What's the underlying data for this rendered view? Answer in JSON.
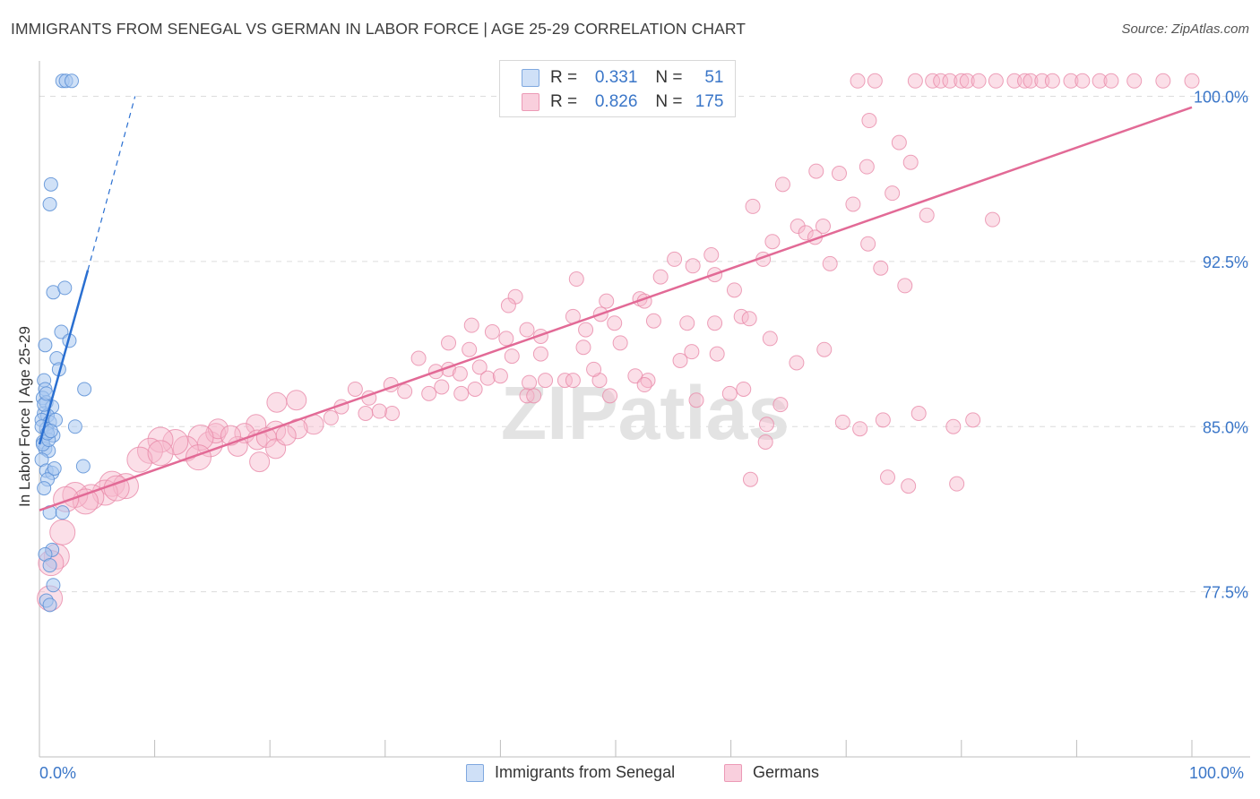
{
  "title": "IMMIGRANTS FROM SENEGAL VS GERMAN IN LABOR FORCE | AGE 25-29 CORRELATION CHART",
  "source": "Source: ZipAtlas.com",
  "watermark": "ZIPatlas",
  "legend_top": {
    "rows": [
      {
        "r_label": "R =",
        "r_value": "0.331",
        "n_label": "N =",
        "n_value": "51",
        "color": "#a9c9f0"
      },
      {
        "r_label": "R =",
        "r_value": "0.826",
        "n_label": "N =",
        "n_value": "175",
        "color": "#f6b8cc"
      }
    ]
  },
  "colors": {
    "senegal_fill": "#a9c9f0",
    "senegal_stroke": "#5a8fd6",
    "senegal_line": "#2a6fd1",
    "german_fill": "#f6b8cc",
    "german_stroke": "#e98aa9",
    "german_line": "#e26a96",
    "grid": "#dcdcdc",
    "tick_label": "#3a76c8"
  },
  "chart_data": {
    "type": "scatter",
    "title": "IMMIGRANTS FROM SENEGAL VS GERMAN IN LABOR FORCE | AGE 25-29 CORRELATION CHART",
    "xlabel": "",
    "ylabel": "In Labor Force | Age 25-29",
    "xlim": [
      0,
      100
    ],
    "ylim": [
      70.0,
      101.2
    ],
    "x_tick_labels": [
      "0.0%",
      "100.0%"
    ],
    "y_ticks": [
      77.5,
      85.0,
      92.5,
      100.0
    ],
    "y_tick_labels": [
      "77.5%",
      "85.0%",
      "92.5%",
      "100.0%"
    ],
    "grid": "horizontal dashed",
    "legend_position": "bottom-center",
    "series": [
      {
        "name": "Immigrants from Senegal",
        "R": 0.331,
        "N": 51,
        "trend": {
          "x": [
            0.0,
            4.2
          ],
          "y": [
            84.2,
            92.1
          ],
          "dashed_extension_to": [
            8.3,
            100.0
          ]
        },
        "points": [
          [
            2.0,
            100.7,
            1
          ],
          [
            2.3,
            100.7,
            1
          ],
          [
            2.8,
            100.7,
            1
          ],
          [
            1.0,
            96.0,
            1
          ],
          [
            0.9,
            95.1,
            1
          ],
          [
            1.2,
            91.1,
            1
          ],
          [
            2.2,
            91.3,
            1
          ],
          [
            1.9,
            89.3,
            1
          ],
          [
            2.6,
            88.9,
            1
          ],
          [
            0.5,
            88.7,
            1
          ],
          [
            1.5,
            88.1,
            1
          ],
          [
            1.7,
            87.6,
            1
          ],
          [
            0.4,
            87.1,
            1
          ],
          [
            0.5,
            86.7,
            1
          ],
          [
            3.9,
            86.7,
            1
          ],
          [
            0.3,
            86.3,
            1
          ],
          [
            0.6,
            86.1,
            1
          ],
          [
            1.1,
            85.9,
            1
          ],
          [
            0.4,
            85.6,
            1
          ],
          [
            0.7,
            85.5,
            1
          ],
          [
            0.2,
            85.3,
            1
          ],
          [
            0.9,
            85.2,
            1
          ],
          [
            3.1,
            85.0,
            1
          ],
          [
            0.6,
            84.9,
            1
          ],
          [
            1.2,
            84.6,
            1
          ],
          [
            0.3,
            84.3,
            1
          ],
          [
            0.5,
            84.0,
            1
          ],
          [
            0.8,
            83.9,
            1
          ],
          [
            0.2,
            83.5,
            1
          ],
          [
            3.8,
            83.2,
            1
          ],
          [
            0.6,
            83.0,
            1
          ],
          [
            1.1,
            82.9,
            1
          ],
          [
            0.7,
            82.6,
            1
          ],
          [
            0.4,
            82.2,
            1
          ],
          [
            0.9,
            81.1,
            1
          ],
          [
            2.0,
            81.1,
            1
          ],
          [
            1.1,
            79.4,
            1
          ],
          [
            0.5,
            79.2,
            1
          ],
          [
            0.9,
            78.7,
            1
          ],
          [
            1.2,
            77.8,
            1
          ],
          [
            0.6,
            77.1,
            1
          ],
          [
            0.9,
            76.9,
            1
          ],
          [
            0.3,
            84.2,
            1
          ],
          [
            0.8,
            84.4,
            1
          ],
          [
            1.4,
            85.3,
            1
          ],
          [
            0.4,
            86.0,
            1
          ],
          [
            0.6,
            86.5,
            1
          ],
          [
            1.3,
            83.1,
            1
          ],
          [
            0.2,
            85.0,
            1
          ],
          [
            0.7,
            84.7,
            1
          ],
          [
            1.0,
            84.8,
            1
          ]
        ]
      },
      {
        "name": "Germans",
        "R": 0.826,
        "N": 175,
        "trend": {
          "x": [
            0.0,
            100.0
          ],
          "y": [
            81.2,
            99.5
          ]
        },
        "points": [
          [
            71.0,
            100.7,
            1
          ],
          [
            72.5,
            100.7,
            1
          ],
          [
            76.0,
            100.7,
            1
          ],
          [
            77.5,
            100.7,
            1
          ],
          [
            78.2,
            100.7,
            1
          ],
          [
            79.0,
            100.7,
            1
          ],
          [
            80.0,
            100.7,
            1
          ],
          [
            80.5,
            100.7,
            1
          ],
          [
            81.5,
            100.7,
            1
          ],
          [
            83.0,
            100.7,
            1
          ],
          [
            84.6,
            100.7,
            1
          ],
          [
            85.5,
            100.7,
            1
          ],
          [
            86.0,
            100.7,
            1
          ],
          [
            87.0,
            100.7,
            1
          ],
          [
            87.9,
            100.7,
            1
          ],
          [
            89.5,
            100.7,
            1
          ],
          [
            90.5,
            100.7,
            1
          ],
          [
            92.0,
            100.7,
            1
          ],
          [
            93.0,
            100.7,
            1
          ],
          [
            95.0,
            100.7,
            1
          ],
          [
            97.5,
            100.7,
            1
          ],
          [
            100.0,
            100.7,
            1
          ],
          [
            72.0,
            98.9,
            1
          ],
          [
            74.6,
            97.9,
            1
          ],
          [
            75.6,
            97.0,
            1
          ],
          [
            71.8,
            96.8,
            1
          ],
          [
            67.4,
            96.6,
            1
          ],
          [
            69.4,
            96.5,
            1
          ],
          [
            64.5,
            96.0,
            1
          ],
          [
            74.0,
            95.6,
            1
          ],
          [
            61.9,
            95.0,
            1
          ],
          [
            70.6,
            95.1,
            1
          ],
          [
            77.0,
            94.6,
            1
          ],
          [
            82.7,
            94.4,
            1
          ],
          [
            65.8,
            94.1,
            1
          ],
          [
            68.0,
            94.1,
            1
          ],
          [
            66.5,
            93.8,
            1
          ],
          [
            67.3,
            93.6,
            1
          ],
          [
            63.6,
            93.4,
            1
          ],
          [
            71.9,
            93.3,
            1
          ],
          [
            58.3,
            92.8,
            1
          ],
          [
            62.8,
            92.6,
            1
          ],
          [
            55.1,
            92.6,
            1
          ],
          [
            56.7,
            92.3,
            1
          ],
          [
            68.6,
            92.4,
            1
          ],
          [
            73.0,
            92.2,
            1
          ],
          [
            58.6,
            91.9,
            1
          ],
          [
            53.9,
            91.8,
            1
          ],
          [
            46.6,
            91.7,
            1
          ],
          [
            60.3,
            91.2,
            1
          ],
          [
            75.1,
            91.4,
            1
          ],
          [
            41.3,
            90.9,
            1
          ],
          [
            52.1,
            90.8,
            1
          ],
          [
            49.2,
            90.7,
            1
          ],
          [
            40.7,
            90.5,
            1
          ],
          [
            52.5,
            90.7,
            1
          ],
          [
            48.7,
            90.1,
            1
          ],
          [
            46.3,
            90.0,
            1
          ],
          [
            60.9,
            90.0,
            1
          ],
          [
            61.6,
            89.9,
            1
          ],
          [
            53.3,
            89.8,
            1
          ],
          [
            56.2,
            89.7,
            1
          ],
          [
            58.6,
            89.7,
            1
          ],
          [
            37.5,
            89.6,
            1
          ],
          [
            49.9,
            89.7,
            1
          ],
          [
            47.4,
            89.4,
            1
          ],
          [
            39.3,
            89.3,
            1
          ],
          [
            42.3,
            89.4,
            1
          ],
          [
            40.5,
            89.0,
            1
          ],
          [
            43.5,
            89.1,
            1
          ],
          [
            50.4,
            88.8,
            1
          ],
          [
            35.5,
            88.8,
            1
          ],
          [
            37.3,
            88.5,
            1
          ],
          [
            63.4,
            89.0,
            1
          ],
          [
            56.6,
            88.4,
            1
          ],
          [
            47.2,
            88.6,
            1
          ],
          [
            41.0,
            88.2,
            1
          ],
          [
            32.9,
            88.1,
            1
          ],
          [
            43.5,
            88.3,
            1
          ],
          [
            35.5,
            87.6,
            1
          ],
          [
            38.2,
            87.7,
            1
          ],
          [
            34.4,
            87.5,
            1
          ],
          [
            36.5,
            87.4,
            1
          ],
          [
            38.9,
            87.2,
            1
          ],
          [
            40.0,
            87.3,
            1
          ],
          [
            42.5,
            87.0,
            1
          ],
          [
            45.6,
            87.1,
            1
          ],
          [
            48.6,
            87.1,
            1
          ],
          [
            30.5,
            86.9,
            1
          ],
          [
            31.7,
            86.6,
            1
          ],
          [
            33.8,
            86.5,
            1
          ],
          [
            34.9,
            86.8,
            1
          ],
          [
            37.8,
            86.7,
            1
          ],
          [
            42.3,
            86.4,
            1
          ],
          [
            51.7,
            87.3,
            1
          ],
          [
            52.8,
            87.1,
            1
          ],
          [
            36.6,
            86.5,
            1
          ],
          [
            42.9,
            86.4,
            1
          ],
          [
            27.4,
            86.7,
            1
          ],
          [
            28.6,
            86.3,
            1
          ],
          [
            30.6,
            85.6,
            1
          ],
          [
            22.3,
            86.2,
            1
          ],
          [
            25.3,
            85.4,
            1
          ],
          [
            28.3,
            85.6,
            1
          ],
          [
            29.5,
            85.7,
            1
          ],
          [
            26.2,
            85.9,
            1
          ],
          [
            20.6,
            86.1,
            1
          ],
          [
            23.8,
            85.1,
            1
          ],
          [
            20.5,
            84.8,
            1
          ],
          [
            18.8,
            85.1,
            1
          ],
          [
            22.4,
            84.9,
            1
          ],
          [
            17.8,
            84.7,
            1
          ],
          [
            14.8,
            84.2,
            1
          ],
          [
            15.3,
            84.7,
            1
          ],
          [
            15.5,
            84.9,
            1
          ],
          [
            14.0,
            84.5,
            1
          ],
          [
            12.7,
            84.0,
            1
          ],
          [
            11.8,
            84.3,
            1
          ],
          [
            10.5,
            84.4,
            1
          ],
          [
            13.8,
            83.6,
            1
          ],
          [
            9.6,
            83.9,
            1
          ],
          [
            8.7,
            83.5,
            1
          ],
          [
            18.9,
            84.4,
            1
          ],
          [
            19.7,
            84.5,
            1
          ],
          [
            19.1,
            83.4,
            1
          ],
          [
            10.5,
            83.8,
            1
          ],
          [
            20.5,
            84.0,
            1
          ],
          [
            17.2,
            84.1,
            1
          ],
          [
            16.6,
            84.6,
            1
          ],
          [
            21.4,
            84.6,
            1
          ],
          [
            6.3,
            82.4,
            1
          ],
          [
            7.5,
            82.3,
            1
          ],
          [
            5.7,
            82.0,
            1
          ],
          [
            4.5,
            81.8,
            1
          ],
          [
            3.1,
            81.9,
            1
          ],
          [
            6.7,
            82.2,
            1
          ],
          [
            4.0,
            81.6,
            1
          ],
          [
            2.3,
            81.7,
            1
          ],
          [
            2.0,
            80.2,
            1
          ],
          [
            1.5,
            79.1,
            1
          ],
          [
            1.0,
            78.8,
            1
          ],
          [
            0.9,
            77.2,
            1
          ],
          [
            64.3,
            86.0,
            1
          ],
          [
            69.7,
            85.2,
            1
          ],
          [
            73.2,
            85.3,
            1
          ],
          [
            76.3,
            85.6,
            1
          ],
          [
            79.3,
            85.0,
            1
          ],
          [
            81.0,
            85.3,
            1
          ],
          [
            49.5,
            86.4,
            1
          ],
          [
            52.5,
            86.9,
            1
          ],
          [
            57.0,
            86.2,
            1
          ],
          [
            59.9,
            86.5,
            1
          ],
          [
            61.1,
            86.7,
            1
          ],
          [
            43.9,
            87.1,
            1
          ],
          [
            46.3,
            87.1,
            1
          ],
          [
            48.1,
            87.6,
            1
          ],
          [
            55.6,
            88.0,
            1
          ],
          [
            58.8,
            88.3,
            1
          ],
          [
            65.7,
            87.9,
            1
          ],
          [
            68.1,
            88.5,
            1
          ],
          [
            63.0,
            84.3,
            1
          ],
          [
            61.7,
            82.6,
            1
          ],
          [
            63.1,
            85.1,
            1
          ],
          [
            71.2,
            84.9,
            1
          ],
          [
            73.6,
            82.7,
            1
          ],
          [
            75.4,
            82.3,
            1
          ],
          [
            79.6,
            82.4,
            1
          ]
        ]
      }
    ]
  },
  "bottom_legend": [
    {
      "label": "Immigrants from Senegal"
    },
    {
      "label": "Germans"
    }
  ]
}
